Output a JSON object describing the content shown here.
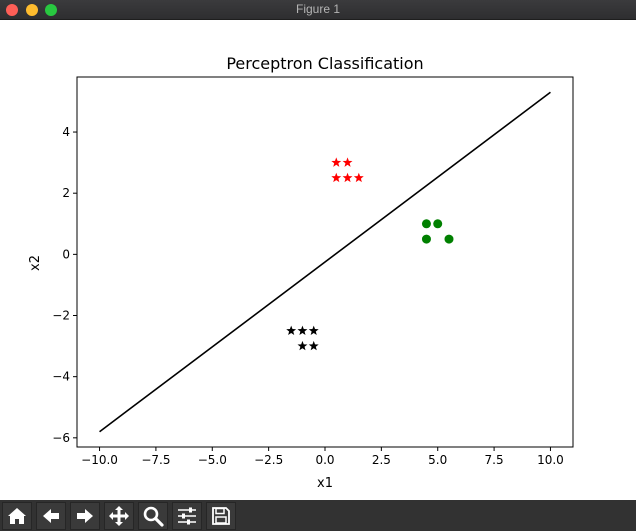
{
  "window": {
    "title": "Figure 1"
  },
  "toolbar": {
    "items": [
      {
        "name": "home-icon"
      },
      {
        "name": "back-arrow-icon"
      },
      {
        "name": "forward-arrow-icon"
      },
      {
        "name": "pan-move-icon"
      },
      {
        "name": "zoom-magnifier-icon"
      },
      {
        "name": "configure-subplots-icon"
      },
      {
        "name": "save-disk-icon"
      }
    ]
  },
  "chart_data": {
    "type": "scatter",
    "title": "Perceptron Classification",
    "xlabel": "x1",
    "ylabel": "x2",
    "xlim": [
      -11,
      11
    ],
    "ylim": [
      -6.3,
      5.8
    ],
    "xticks": [
      -10.0,
      -7.5,
      -5.0,
      -2.5,
      0.0,
      2.5,
      5.0,
      7.5,
      10.0
    ],
    "xtick_labels": [
      "−10.0",
      "−7.5",
      "−5.0",
      "−2.5",
      "0.0",
      "2.5",
      "5.0",
      "7.5",
      "10.0"
    ],
    "yticks": [
      -6,
      -4,
      -2,
      0,
      2,
      4
    ],
    "ytick_labels": [
      "−6",
      "−4",
      "−2",
      "0",
      "2",
      "4"
    ],
    "grid": false,
    "series": [
      {
        "marker": "star",
        "color": "#ff0000",
        "points": [
          [
            0.5,
            3.0
          ],
          [
            1.0,
            3.0
          ],
          [
            0.5,
            2.5
          ],
          [
            1.0,
            2.5
          ],
          [
            1.5,
            2.5
          ]
        ]
      },
      {
        "marker": "circle",
        "color": "#008000",
        "points": [
          [
            4.5,
            1.0
          ],
          [
            5.0,
            1.0
          ],
          [
            4.5,
            0.5
          ],
          [
            5.5,
            0.5
          ]
        ]
      },
      {
        "marker": "star",
        "color": "#000000",
        "points": [
          [
            -1.5,
            -2.5
          ],
          [
            -1.0,
            -2.5
          ],
          [
            -0.5,
            -2.5
          ],
          [
            -1.0,
            -3.0
          ],
          [
            -0.5,
            -3.0
          ]
        ]
      }
    ],
    "line": {
      "color": "#000000",
      "points": [
        [
          -10.0,
          -5.8
        ],
        [
          10.0,
          5.3
        ]
      ]
    }
  }
}
